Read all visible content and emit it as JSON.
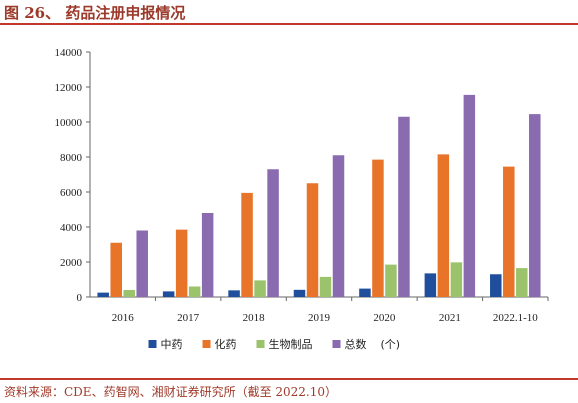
{
  "figure": {
    "title": "图 26、 药品注册申报情况",
    "source": "资料来源：CDE、药智网、湘财证券研究所（截至 2022.10）"
  },
  "chart_data": {
    "type": "bar",
    "categories": [
      "2016",
      "2017",
      "2018",
      "2019",
      "2020",
      "2021",
      "2022.1-10"
    ],
    "ylim": [
      0,
      14000
    ],
    "yticks": [
      0,
      2000,
      4000,
      6000,
      8000,
      10000,
      12000,
      14000
    ],
    "grid": false,
    "legend_position": "bottom",
    "legend_suffix": "(个)",
    "series": [
      {
        "name": "中药",
        "color": "#1f4e9c",
        "values": [
          250,
          320,
          380,
          410,
          480,
          1350,
          1300
        ]
      },
      {
        "name": "化药",
        "color": "#e8742a",
        "values": [
          3100,
          3850,
          5950,
          6500,
          7850,
          8150,
          7450
        ]
      },
      {
        "name": "生物制品",
        "color": "#9bc36b",
        "values": [
          400,
          600,
          950,
          1150,
          1850,
          1980,
          1650
        ]
      },
      {
        "name": "总数",
        "color": "#8a6bb0",
        "values": [
          3800,
          4800,
          7300,
          8100,
          10300,
          11550,
          10450
        ]
      }
    ]
  }
}
